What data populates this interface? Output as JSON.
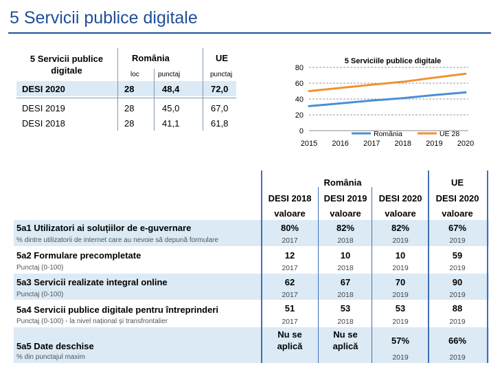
{
  "page": {
    "title": "5 Servicii publice digitale"
  },
  "summary_table": {
    "header_label": "5 Servicii publice digitale",
    "col_romania": "România",
    "col_ue": "UE",
    "sub_loc": "loc",
    "sub_punctaj_ro": "punctaj",
    "sub_punctaj_ue": "punctaj",
    "rows": [
      {
        "label": "DESI 2020",
        "loc": "28",
        "punctaj": "48,4",
        "ue": "72,0"
      },
      {
        "label": "DESI 2019",
        "loc": "28",
        "punctaj": "45,0",
        "ue": "67,0"
      },
      {
        "label": "DESI 2018",
        "loc": "28",
        "punctaj": "41,1",
        "ue": "61,8"
      }
    ]
  },
  "chart_data": {
    "type": "line",
    "title": "5 Serviciile publice digitale",
    "x": [
      2015,
      2016,
      2017,
      2018,
      2019,
      2020
    ],
    "ylim": [
      0,
      80
    ],
    "yticks": [
      0,
      20,
      40,
      60,
      80
    ],
    "grid": true,
    "legend": "bottom",
    "series": [
      {
        "name": "România",
        "color": "#4a8fd6",
        "values": [
          31,
          34.5,
          38,
          41.1,
          45,
          48.4
        ]
      },
      {
        "name": "UE 28",
        "color": "#f0922f",
        "values": [
          50,
          54,
          58,
          61.8,
          67,
          72
        ]
      }
    ]
  },
  "main_table": {
    "group_romania": "România",
    "group_ue": "UE",
    "cols": [
      "DESI 2018",
      "DESI 2019",
      "DESI 2020",
      "DESI 2020"
    ],
    "sub": [
      "valoare",
      "valoare",
      "valoare",
      "valoare"
    ],
    "rows": [
      {
        "label": "5a1 Utilizatori ai soluțiilor de e-guvernare",
        "sub": "% dintre utilizatorii de internet care au nevoie să depună formulare",
        "values": [
          "80%",
          "82%",
          "82%",
          "67%"
        ],
        "years": [
          "2017",
          "2018",
          "2019",
          "2019"
        ]
      },
      {
        "label": "5a2 Formulare precompletate",
        "sub": "Punctaj (0-100)",
        "values": [
          "12",
          "10",
          "10",
          "59"
        ],
        "years": [
          "2017",
          "2018",
          "2019",
          "2019"
        ]
      },
      {
        "label": "5a3 Servicii realizate integral online",
        "sub": "Punctaj (0-100)",
        "values": [
          "62",
          "67",
          "70",
          "90"
        ],
        "years": [
          "2017",
          "2018",
          "2019",
          "2019"
        ]
      },
      {
        "label": "5a4 Servicii publice digitale pentru întreprinderi",
        "sub": "Punctaj (0-100) - la nivel național și transfrontalier",
        "values": [
          "51",
          "53",
          "53",
          "88"
        ],
        "years": [
          "2017",
          "2018",
          "2019",
          "2019"
        ]
      },
      {
        "label": "5a5 Date deschise",
        "sub": "% din punctajul maxim",
        "values": [
          "Nu se aplică",
          "Nu se aplică",
          "57%",
          "66%"
        ],
        "years": [
          "",
          "",
          "2019",
          "2019"
        ]
      }
    ]
  }
}
